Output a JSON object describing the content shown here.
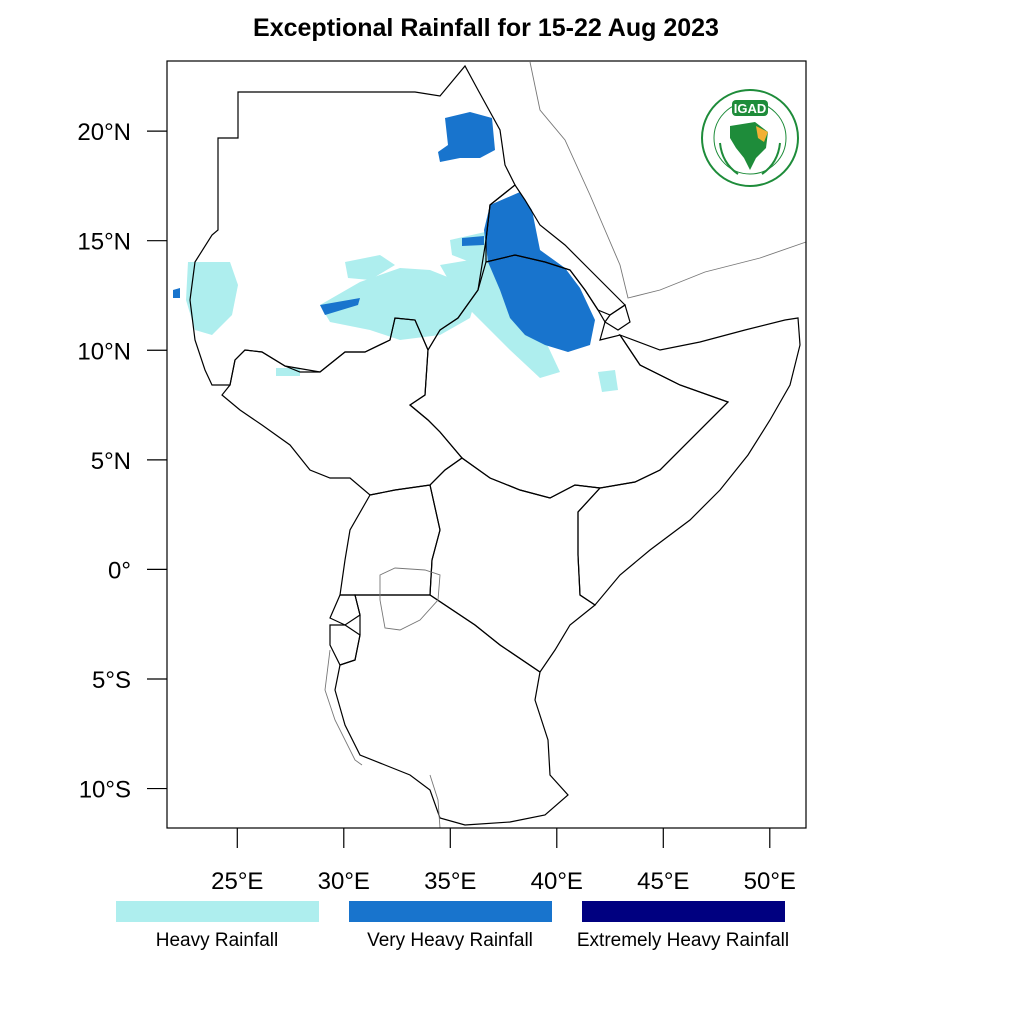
{
  "title": "Exceptional Rainfall for 15-22 Aug 2023",
  "map": {
    "lon_range": [
      21.7,
      51.7
    ],
    "lat_range": [
      -11.8,
      23.2
    ],
    "lat_ticks": [
      {
        "value": 20,
        "label": "20°N"
      },
      {
        "value": 15,
        "label": "15°N"
      },
      {
        "value": 10,
        "label": "10°N"
      },
      {
        "value": 5,
        "label": "5°N"
      },
      {
        "value": 0,
        "label": "0°"
      },
      {
        "value": -5,
        "label": "5°S"
      },
      {
        "value": -10,
        "label": "10°S"
      }
    ],
    "lon_ticks": [
      {
        "value": 25,
        "label": "25°E"
      },
      {
        "value": 30,
        "label": "30°E"
      },
      {
        "value": 35,
        "label": "35°E"
      },
      {
        "value": 40,
        "label": "40°E"
      },
      {
        "value": 45,
        "label": "45°E"
      },
      {
        "value": 50,
        "label": "50°E"
      }
    ]
  },
  "legend": [
    {
      "label": "Heavy Rainfall",
      "color": "#aeeeee"
    },
    {
      "label": "Very Heavy Rainfall",
      "color": "#1874cd"
    },
    {
      "label": "Extremely Heavy Rainfall",
      "color": "#000080"
    }
  ],
  "logo": {
    "text": "IGAD",
    "ring_color": "#1e8c3a",
    "accent_color": "#f2b035"
  }
}
